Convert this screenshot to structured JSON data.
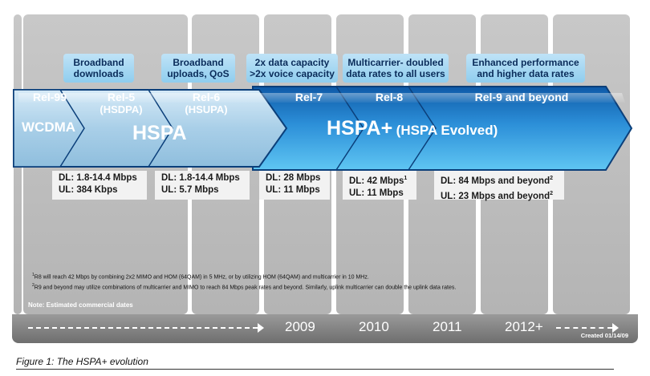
{
  "callouts": [
    {
      "line1": "Broadband",
      "line2": "downloads"
    },
    {
      "line1": "Broadband",
      "line2": "uploads, QoS"
    },
    {
      "line1": "2x data capacity",
      "line2": ">2x voice capacity"
    },
    {
      "line1": "Multicarrier- doubled",
      "line2": "data rates to all users"
    },
    {
      "line1": "Enhanced performance",
      "line2": "and higher data rates"
    }
  ],
  "releases": [
    {
      "name": "Rel-99"
    },
    {
      "name": "Rel-5",
      "sub": "(HSDPA)"
    },
    {
      "name": "Rel-6",
      "sub": "(HSUPA)"
    },
    {
      "name": "Rel-7"
    },
    {
      "name": "Rel-8"
    },
    {
      "name": "Rel-9 and beyond"
    }
  ],
  "technologies": {
    "wcdma": "WCDMA",
    "hspa": "HSPA",
    "hspa_plus": "HSPA+",
    "hspa_plus_sub": "(HSPA Evolved)"
  },
  "specs": [
    {
      "dl": "DL: 1.8-14.4 Mbps",
      "ul": "UL: 384 Kbps"
    },
    {
      "dl": "DL: 1.8-14.4 Mbps",
      "ul": "UL: 5.7 Mbps"
    },
    {
      "dl": "DL: 28 Mbps",
      "ul": "UL: 11 Mbps"
    },
    {
      "dl": "DL: 42 Mbps",
      "dl_sup": "1",
      "ul": "UL: 11 Mbps"
    },
    {
      "dl": "DL: 84 Mbps and beyond",
      "dl_sup": "2",
      "ul": "UL: 23 Mbps and beyond",
      "ul_sup": "2"
    }
  ],
  "footnotes": [
    {
      "mark": "1",
      "text": "R8 will reach 42 Mbps by combining 2x2 MIMO and HOM (64QAM) in 5 MHz, or by utilizing HOM (64QAM) and multicarrier in 10 MHz."
    },
    {
      "mark": "2",
      "text": "R9 and beyond may utilize combinations of multicarrier and MIMO to reach 84 Mbps peak rates and beyond. Similarly, uplink multicarrier can double the uplink data rates."
    }
  ],
  "note": "Note: Estimated commercial dates",
  "years": [
    "2009",
    "2010",
    "2011",
    "2012+"
  ],
  "created": "Created 01/14/09",
  "caption": "Figure 1: The HSPA+ evolution",
  "colors": {
    "light_arrow": "#a9d0ea",
    "dark_arrow": "#1f7fc8",
    "callout": "#9fd6f2"
  }
}
